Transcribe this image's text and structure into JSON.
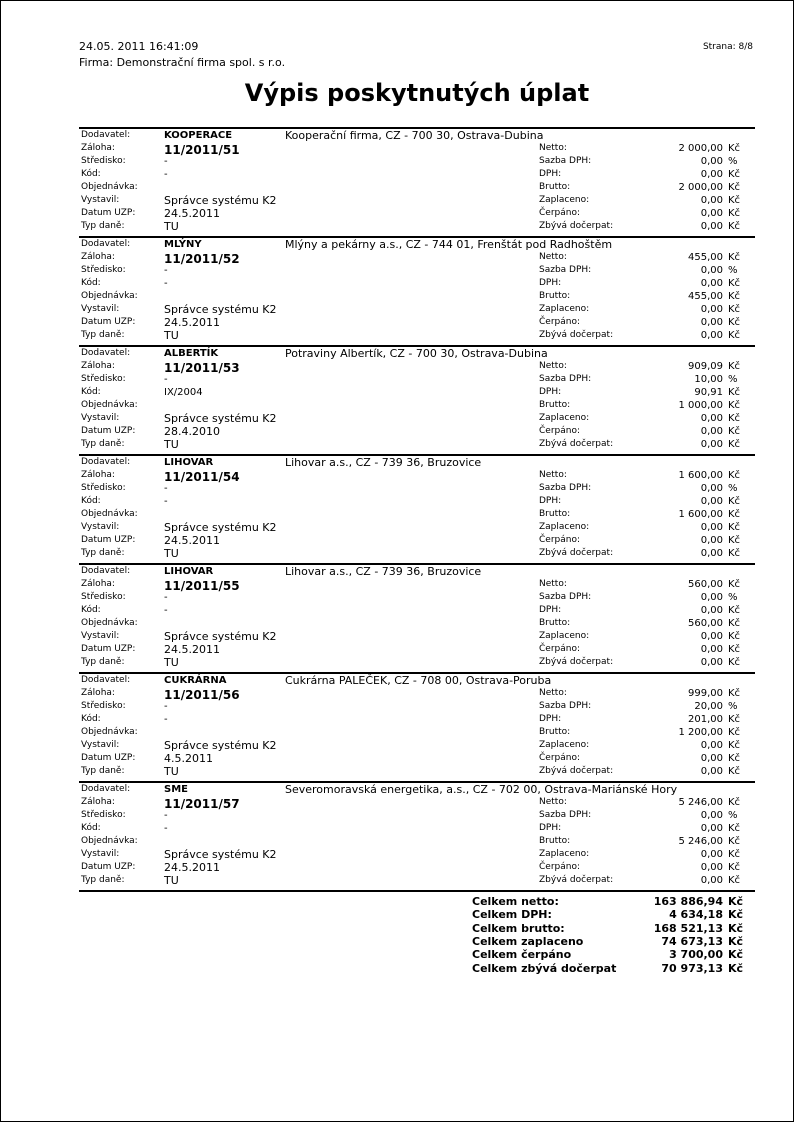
{
  "header": {
    "datetime": "24.05. 2011  16:41:09",
    "page": "Strana: 8/8",
    "firm": "Firma: Demonstrační firma spol. s r.o.",
    "title": "Výpis poskytnutých úplat"
  },
  "labels": {
    "left": [
      "Dodavatel:",
      "Záloha:",
      "Středisko:",
      "Kód:",
      "Objednávka:",
      "Vystavil:",
      "Datum UZP:",
      "Typ daně:"
    ],
    "right": [
      "Netto:",
      "Sazba DPH:",
      "DPH:",
      "Brutto:",
      "Zaplaceno:",
      "Čerpáno:",
      "Zbývá dočerpat:"
    ],
    "units": [
      "Kč",
      "%",
      "Kč",
      "Kč",
      "Kč",
      "Kč",
      "Kč"
    ]
  },
  "records": [
    {
      "code": "KOOPERACE",
      "name": "Kooperační firma, CZ - 700 30, Ostrava-Dubina",
      "zaloha": "11/2011/51",
      "stredisko": "-",
      "kod": "-",
      "vystavil": "Správce systému K2",
      "datum": "24.5.2011",
      "typ": "TU",
      "amounts": [
        "2 000,00",
        "0,00",
        "0,00",
        "2 000,00",
        "0,00",
        "0,00",
        "0,00"
      ]
    },
    {
      "code": "MLÝNY",
      "name": "Mlýny a pekárny a.s., CZ - 744 01, Frenštát pod Radhoštěm",
      "zaloha": "11/2011/52",
      "stredisko": "-",
      "kod": "-",
      "vystavil": "Správce systému K2",
      "datum": "24.5.2011",
      "typ": "TU",
      "amounts": [
        "455,00",
        "0,00",
        "0,00",
        "455,00",
        "0,00",
        "0,00",
        "0,00"
      ]
    },
    {
      "code": "ALBERTÍK",
      "name": "Potraviny Albertík, CZ - 700 30, Ostrava-Dubina",
      "zaloha": "11/2011/53",
      "stredisko": "-",
      "kod": "IX/2004",
      "vystavil": "Správce systému K2",
      "datum": "28.4.2010",
      "typ": "TU",
      "amounts": [
        "909,09",
        "10,00",
        "90,91",
        "1 000,00",
        "0,00",
        "0,00",
        "0,00"
      ]
    },
    {
      "code": "LIHOVAR",
      "name": "Lihovar a.s., CZ - 739 36, Bruzovice",
      "zaloha": "11/2011/54",
      "stredisko": "-",
      "kod": "-",
      "vystavil": "Správce systému K2",
      "datum": "24.5.2011",
      "typ": "TU",
      "amounts": [
        "1 600,00",
        "0,00",
        "0,00",
        "1 600,00",
        "0,00",
        "0,00",
        "0,00"
      ]
    },
    {
      "code": "LIHOVAR",
      "name": "Lihovar a.s., CZ - 739 36, Bruzovice",
      "zaloha": "11/2011/55",
      "stredisko": "-",
      "kod": "-",
      "vystavil": "Správce systému K2",
      "datum": "24.5.2011",
      "typ": "TU",
      "amounts": [
        "560,00",
        "0,00",
        "0,00",
        "560,00",
        "0,00",
        "0,00",
        "0,00"
      ]
    },
    {
      "code": "CUKRÁRNA",
      "name": "Cukrárna PALEČEK, CZ - 708 00, Ostrava-Poruba",
      "zaloha": "11/2011/56",
      "stredisko": "-",
      "kod": "-",
      "vystavil": "Správce systému K2",
      "datum": "4.5.2011",
      "typ": "TU",
      "amounts": [
        "999,00",
        "20,00",
        "201,00",
        "1 200,00",
        "0,00",
        "0,00",
        "0,00"
      ]
    },
    {
      "code": "SME",
      "name": "Severomoravská energetika, a.s., CZ - 702 00, Ostrava-Mariánské Hory",
      "zaloha": "11/2011/57",
      "stredisko": "-",
      "kod": "-",
      "vystavil": "Správce systému K2",
      "datum": "24.5.2011",
      "typ": "TU",
      "amounts": [
        "5 246,00",
        "0,00",
        "0,00",
        "5 246,00",
        "0,00",
        "0,00",
        "0,00"
      ]
    }
  ],
  "totals": {
    "unit": "Kč",
    "rows": [
      {
        "label": "Celkem netto:",
        "value": "163 886,94"
      },
      {
        "label": "Celkem DPH:",
        "value": "4 634,18"
      },
      {
        "label": "Celkem brutto:",
        "value": "168 521,13"
      },
      {
        "label": "Celkem zaplaceno",
        "value": "74 673,13"
      },
      {
        "label": "Celkem čerpáno",
        "value": "3 700,00"
      },
      {
        "label": "Celkem zbývá dočerpat",
        "value": "70 973,13"
      }
    ]
  }
}
